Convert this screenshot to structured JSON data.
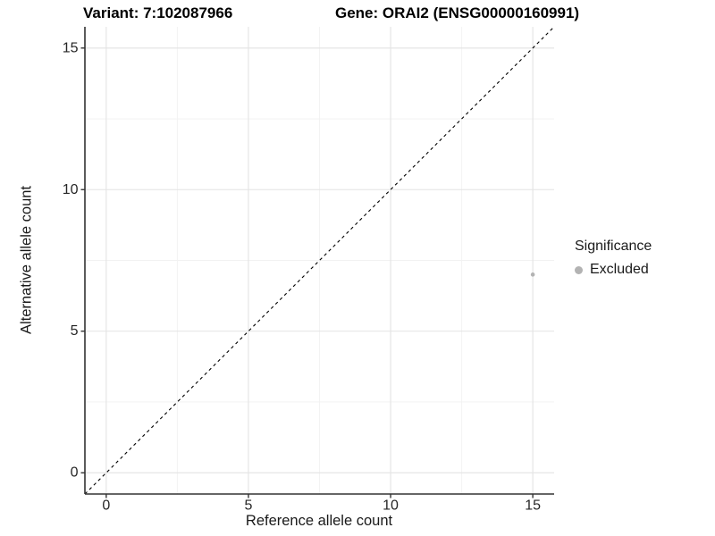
{
  "header": {
    "title_left": "Variant: 7:102087966",
    "title_right": "Gene: ORAI2 (ENSG00000160991)"
  },
  "chart_data": {
    "type": "scatter",
    "title": "Variant: 7:102087966   Gene: ORAI2 (ENSG00000160991)",
    "xlabel": "Reference allele count",
    "ylabel": "Alternative allele count",
    "xlim": [
      -0.75,
      15.75
    ],
    "ylim": [
      -0.75,
      15.75
    ],
    "xticks": [
      0,
      5,
      10,
      15
    ],
    "yticks": [
      0,
      5,
      10,
      15
    ],
    "x_minor_ticks": [
      2.5,
      7.5,
      12.5
    ],
    "y_minor_ticks": [
      2.5,
      7.5,
      12.5
    ],
    "grid": "major+minor",
    "points": [
      {
        "x": 15,
        "y": 7,
        "series": "Excluded"
      }
    ],
    "reference_line": {
      "slope": 1,
      "intercept": 0,
      "style": "dashed"
    },
    "legend": {
      "title": "Significance",
      "position": "right",
      "items": [
        {
          "label": "Excluded",
          "color": "#b3b3b3"
        }
      ]
    },
    "colors": {
      "point": "#b3b3b3",
      "grid_major": "#e3e3e3",
      "grid_minor": "#f2f2f2",
      "axis_line": "#333333",
      "tick_label": "#262626",
      "reference_line": "#000000",
      "background": "#ffffff"
    }
  }
}
